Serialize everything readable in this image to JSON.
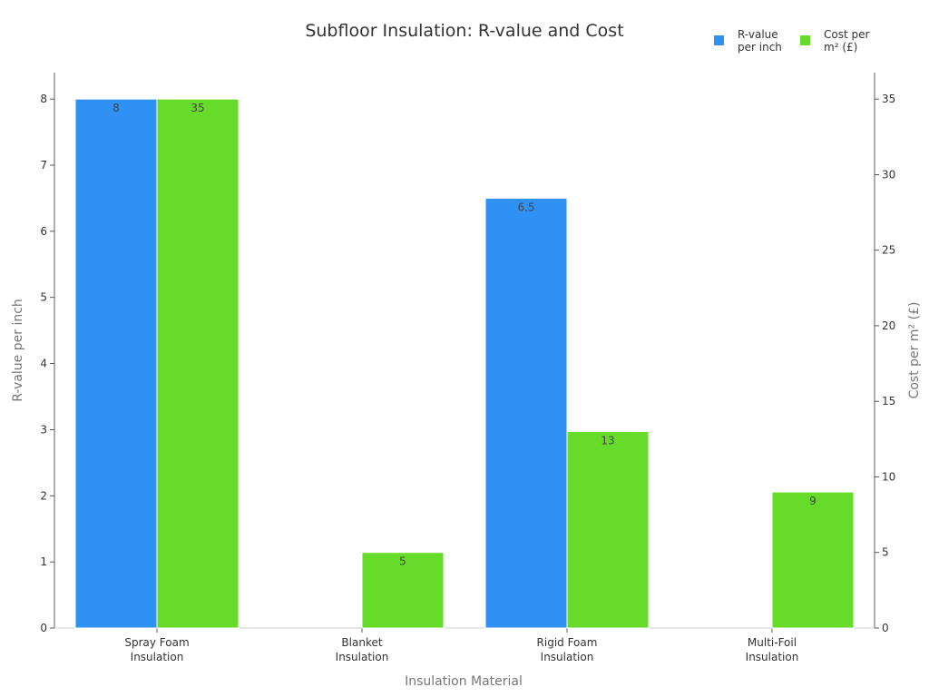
{
  "chart_data": {
    "type": "bar",
    "title": "Subfloor Insulation: R-value and Cost",
    "xlabel": "Insulation Material",
    "ylabel": "R-value per inch",
    "y2label": "Cost per m² (£)",
    "categories": [
      [
        "Spray Foam",
        "Insulation"
      ],
      [
        "Blanket",
        "Insulation"
      ],
      [
        "Rigid Foam",
        "Insulation"
      ],
      [
        "Multi-Foil",
        "Insulation"
      ]
    ],
    "series": [
      {
        "name": "R-value per inch",
        "legend_lines": [
          "R-value",
          "per inch"
        ],
        "axis": "left",
        "color": "#3091f5",
        "values": [
          8,
          null,
          6.5,
          null
        ],
        "labels": [
          "8",
          "",
          "6.5",
          ""
        ]
      },
      {
        "name": "Cost per m² (£)",
        "legend_lines": [
          "Cost per",
          "m² (£)"
        ],
        "axis": "right",
        "color": "#66db29",
        "values": [
          35,
          5,
          13,
          9
        ],
        "labels": [
          "35",
          "5",
          "13",
          "9"
        ]
      }
    ],
    "ylim": [
      0,
      8.4
    ],
    "y2lim": [
      0,
      36.75
    ],
    "yticks": [
      0,
      1,
      2,
      3,
      4,
      5,
      6,
      7,
      8
    ],
    "y2ticks": [
      0,
      5,
      10,
      15,
      20,
      25,
      30,
      35
    ],
    "legend_position": "top-right",
    "grid": false
  }
}
